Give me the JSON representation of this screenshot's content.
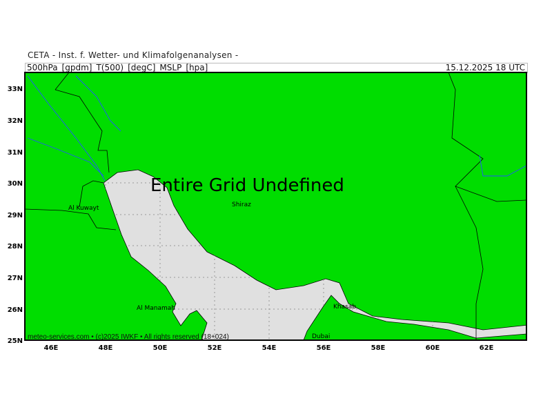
{
  "header": {
    "institute": "CETA - Inst. f. Wetter- und Klimafolgenanalysen -",
    "parameters": "500hPa_[gpdm]_T(500)_[degC]_MSLP_[hpa]",
    "valid_time": "15.12.2025 18 UTC"
  },
  "map": {
    "message": "Entire Grid Undefined",
    "lat_labels": [
      "33N",
      "32N",
      "31N",
      "30N",
      "29N",
      "28N",
      "27N",
      "26N",
      "25N"
    ],
    "lon_labels": [
      "46E",
      "48E",
      "50E",
      "52E",
      "54E",
      "56E",
      "58E",
      "60E",
      "62E"
    ],
    "cities": {
      "shiraz": "Shiraz",
      "kuwait": "Al Kuwayt",
      "manamah": "Al Manamah",
      "khasab": "Khasab",
      "dubai": "Dubai"
    },
    "colors": {
      "land": "#00dd00",
      "water": "#e0e0e0",
      "rivers": "#2255ff",
      "borders": "#000000"
    }
  },
  "footer": {
    "credit": "meteo-services.com • (c)2025 IWKF • All rights reserved (18+024)"
  }
}
